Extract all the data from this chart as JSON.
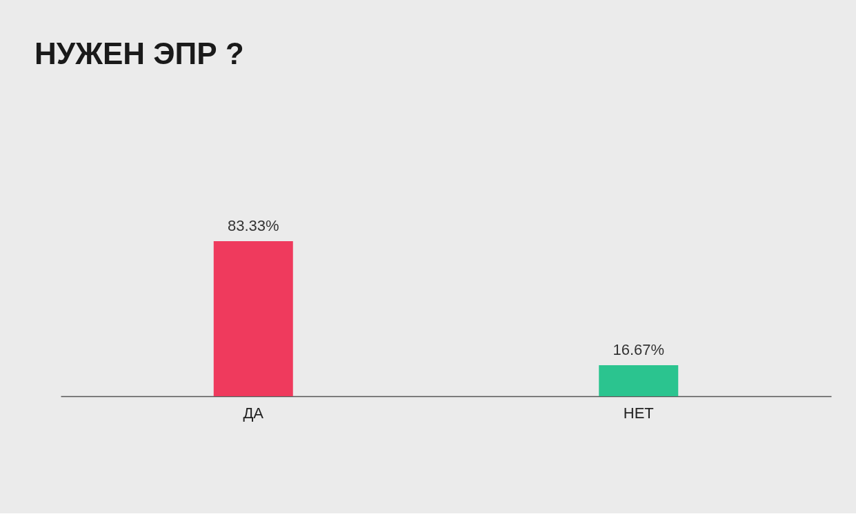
{
  "chart_data": {
    "type": "bar",
    "title": "НУЖЕН ЭПР ?",
    "categories": [
      "ДА",
      "НЕТ"
    ],
    "values": [
      83.33,
      16.67
    ],
    "colors": [
      "#ef3a5d",
      "#2bc48f"
    ],
    "value_labels": [
      "83.33%",
      "16.67%"
    ]
  }
}
